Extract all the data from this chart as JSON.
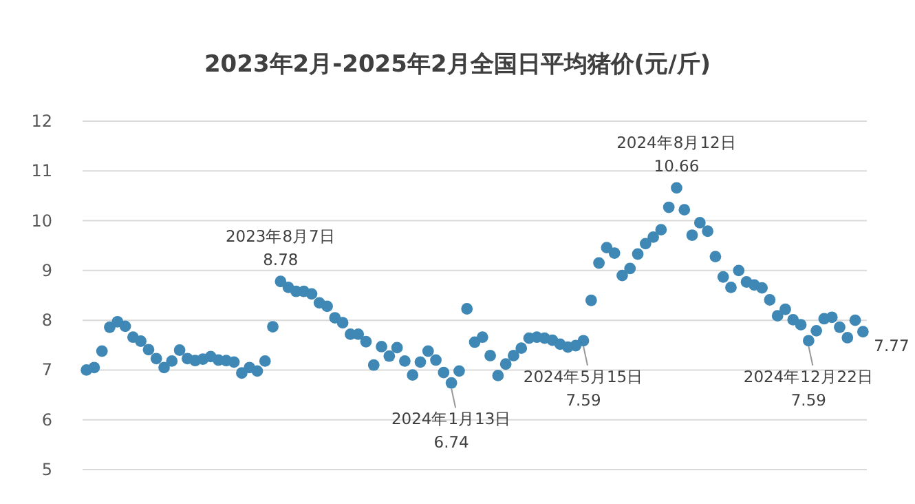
{
  "chart_data": {
    "type": "scatter",
    "title": "2023年2月-2025年2月全国日平均猪价(元/斤)",
    "ylim": [
      5,
      12
    ],
    "yticks": [
      5,
      6,
      7,
      8,
      9,
      10,
      11,
      12
    ],
    "grid": "y",
    "tick_labels": "y",
    "marker": "circle",
    "categories": [
      null,
      null,
      null,
      null,
      null,
      null,
      null,
      null,
      null,
      null,
      null,
      null,
      null,
      null,
      null,
      null,
      null,
      null,
      null,
      null,
      null,
      null,
      null,
      null,
      null,
      null,
      null,
      null,
      null,
      null,
      null,
      null,
      null,
      null,
      null,
      null,
      null,
      null,
      null,
      null,
      null,
      null,
      null,
      null,
      null,
      null,
      null,
      null,
      null,
      null,
      null,
      null,
      null,
      null,
      null,
      null,
      null,
      null,
      null,
      null,
      null,
      null,
      null,
      null,
      null,
      null,
      null,
      null,
      null,
      null,
      null,
      null,
      null,
      null,
      null,
      null,
      null,
      null,
      null,
      null,
      null,
      null,
      null,
      null,
      null,
      null,
      null,
      null,
      null,
      null,
      null,
      null,
      null,
      null,
      null,
      null,
      null,
      null,
      null,
      null,
      null
    ],
    "series": [
      {
        "color": "#3f88b5",
        "values": [
          7.0,
          7.05,
          7.38,
          7.86,
          7.97,
          7.88,
          7.66,
          7.58,
          7.41,
          7.23,
          7.05,
          7.18,
          7.4,
          7.23,
          7.19,
          7.22,
          7.27,
          7.2,
          7.19,
          7.16,
          6.94,
          7.05,
          6.98,
          7.18,
          7.87,
          8.78,
          8.66,
          8.58,
          8.58,
          8.53,
          8.35,
          8.28,
          8.05,
          7.95,
          7.72,
          7.72,
          7.57,
          7.1,
          7.47,
          7.28,
          7.45,
          7.18,
          6.9,
          7.16,
          7.38,
          7.2,
          6.95,
          6.74,
          6.98,
          8.23,
          7.56,
          7.66,
          7.29,
          6.89,
          7.12,
          7.29,
          7.44,
          7.64,
          7.66,
          7.64,
          7.6,
          7.52,
          7.46,
          7.49,
          7.59,
          8.4,
          9.15,
          9.46,
          9.35,
          8.9,
          9.04,
          9.33,
          9.54,
          9.67,
          9.82,
          10.27,
          10.66,
          10.22,
          9.71,
          9.96,
          9.79,
          9.28,
          8.87,
          8.66,
          9.0,
          8.77,
          8.71,
          8.65,
          8.41,
          8.09,
          8.22,
          8.01,
          7.91,
          7.59,
          7.79,
          8.03,
          8.06,
          7.86,
          7.65,
          8.0,
          7.77
        ]
      }
    ],
    "annotations": [
      {
        "text": "2023年8月7日\n8.78",
        "y": 8.78
      },
      {
        "text": "2024年1月13日\n6.74",
        "y": 6.74
      },
      {
        "text": "2024年5月15日\n7.59",
        "y": 7.59
      },
      {
        "text": "2024年8月12日\n10.66",
        "y": 10.66
      },
      {
        "text": "2024年12月22日\n7.59",
        "y": 7.59
      },
      "7.77"
    ]
  }
}
